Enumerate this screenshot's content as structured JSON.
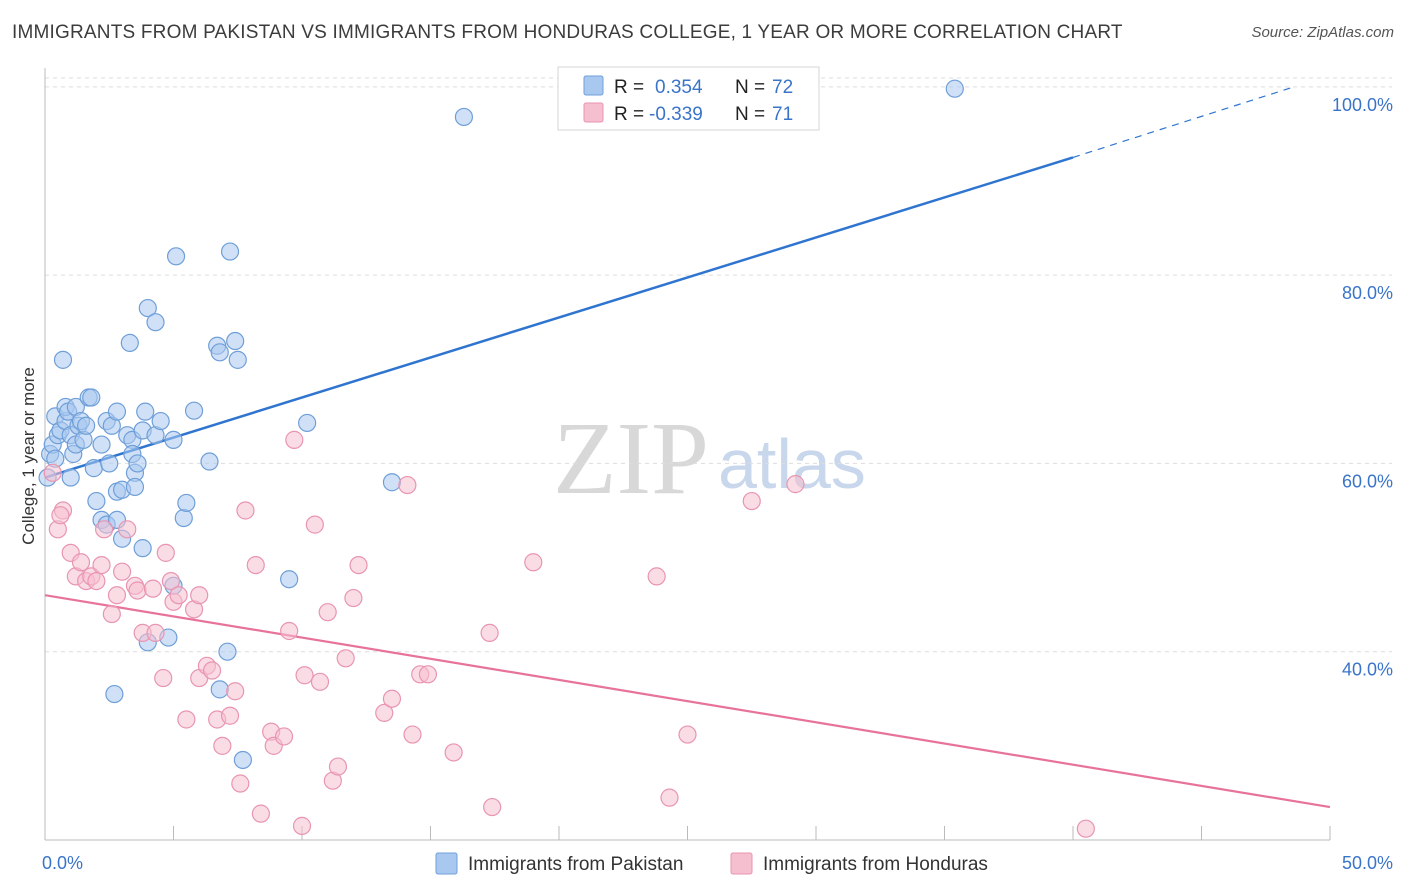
{
  "title": "IMMIGRANTS FROM PAKISTAN VS IMMIGRANTS FROM HONDURAS COLLEGE, 1 YEAR OR MORE CORRELATION CHART",
  "source": "Source: ZipAtlas.com",
  "watermark": {
    "zip": "ZIP",
    "atlas": "atlas"
  },
  "colors": {
    "blue_fill": "#a9c8f0",
    "blue_stroke": "#6f9fd8",
    "blue_line": "#2f75d0",
    "pink_fill": "#f6bfd0",
    "pink_stroke": "#e895b2",
    "pink_line": "#e8739a",
    "tick_text": "#3a74c9",
    "grid": "#dddddd"
  },
  "legend_box": {
    "rows": [
      {
        "r_label": "R =",
        "r_value": "0.354",
        "n_label": "N =",
        "n_value": "72"
      },
      {
        "r_label": "R =",
        "r_value": "-0.339",
        "n_label": "N =",
        "n_value": "71"
      }
    ]
  },
  "chart_data": {
    "type": "scatter",
    "title": "IMMIGRANTS FROM PAKISTAN VS IMMIGRANTS FROM HONDURAS COLLEGE, 1 YEAR OR MORE CORRELATION CHART",
    "xlabel": "",
    "ylabel": "College, 1 year or more",
    "xlim": [
      0,
      50
    ],
    "ylim": [
      20,
      102
    ],
    "x_tick_labels": [
      "0.0%",
      "50.0%"
    ],
    "y_ticks": [
      40,
      60,
      80,
      100
    ],
    "y_tick_labels": [
      "40.0%",
      "60.0%",
      "80.0%",
      "100.0%"
    ],
    "legend_position": "bottom",
    "series": [
      {
        "name": "Immigrants from Pakistan",
        "r": 0.354,
        "n": 72,
        "trend": {
          "x0": 0,
          "y0": 58.5,
          "x1": 40.0,
          "y1": 92.5,
          "dash_x1": 48.6,
          "dash_y1": 100.0
        },
        "points": [
          [
            0.1,
            58.5
          ],
          [
            0.2,
            61
          ],
          [
            0.3,
            62
          ],
          [
            0.4,
            65
          ],
          [
            0.4,
            60.5
          ],
          [
            0.5,
            63
          ],
          [
            0.6,
            63.5
          ],
          [
            0.7,
            71
          ],
          [
            0.8,
            64.5
          ],
          [
            0.8,
            66
          ],
          [
            0.9,
            65.5
          ],
          [
            1.0,
            63
          ],
          [
            1.1,
            61
          ],
          [
            1.2,
            62
          ],
          [
            1.2,
            66
          ],
          [
            1.3,
            64
          ],
          [
            1.4,
            64.5
          ],
          [
            1.5,
            62.5
          ],
          [
            1.6,
            64
          ],
          [
            1.7,
            67
          ],
          [
            1.8,
            67
          ],
          [
            1.9,
            59.5
          ],
          [
            2.0,
            56
          ],
          [
            2.2,
            62
          ],
          [
            2.4,
            64.5
          ],
          [
            2.5,
            60
          ],
          [
            2.6,
            64
          ],
          [
            2.8,
            57
          ],
          [
            2.8,
            65.5
          ],
          [
            3.0,
            57.2
          ],
          [
            3.0,
            52
          ],
          [
            3.2,
            63
          ],
          [
            3.3,
            72.8
          ],
          [
            3.4,
            62.5
          ],
          [
            3.4,
            61
          ],
          [
            3.5,
            59
          ],
          [
            3.5,
            57.5
          ],
          [
            3.6,
            60
          ],
          [
            3.8,
            63.5
          ],
          [
            3.9,
            65.5
          ],
          [
            2.2,
            54
          ],
          [
            2.4,
            53.5
          ],
          [
            3.8,
            51
          ],
          [
            4.0,
            76.5
          ],
          [
            4.0,
            41
          ],
          [
            4.3,
            75
          ],
          [
            4.3,
            63
          ],
          [
            4.5,
            64.5
          ],
          [
            4.8,
            41.5
          ],
          [
            5.0,
            47
          ],
          [
            5.0,
            62.5
          ],
          [
            5.1,
            82
          ],
          [
            5.4,
            54.2
          ],
          [
            5.5,
            55.8
          ],
          [
            5.8,
            65.6
          ],
          [
            6.4,
            60.2
          ],
          [
            6.7,
            72.5
          ],
          [
            6.8,
            71.8
          ],
          [
            6.8,
            36
          ],
          [
            7.1,
            40
          ],
          [
            7.2,
            82.5
          ],
          [
            7.4,
            73
          ],
          [
            7.5,
            71
          ],
          [
            7.7,
            28.5
          ],
          [
            2.7,
            35.5
          ],
          [
            9.5,
            47.7
          ],
          [
            10.2,
            64.3
          ],
          [
            13.5,
            58
          ],
          [
            16.3,
            96.8
          ],
          [
            35.4,
            99.8
          ],
          [
            2.8,
            54
          ],
          [
            1.0,
            58.5
          ]
        ]
      },
      {
        "name": "Immigrants from Honduras",
        "r": -0.339,
        "n": 71,
        "trend": {
          "x0": 0,
          "y0": 46.0,
          "x1": 50,
          "y1": 23.5
        },
        "points": [
          [
            0.3,
            59
          ],
          [
            0.5,
            53
          ],
          [
            0.7,
            55
          ],
          [
            1.0,
            50.5
          ],
          [
            1.2,
            48
          ],
          [
            1.4,
            49.5
          ],
          [
            1.6,
            47.5
          ],
          [
            1.8,
            48
          ],
          [
            2.0,
            47.5
          ],
          [
            2.2,
            49.2
          ],
          [
            2.3,
            53
          ],
          [
            2.6,
            44
          ],
          [
            2.8,
            46
          ],
          [
            3.0,
            48.5
          ],
          [
            3.2,
            53
          ],
          [
            3.5,
            47
          ],
          [
            3.6,
            46.5
          ],
          [
            3.8,
            42
          ],
          [
            4.2,
            46.7
          ],
          [
            4.3,
            42
          ],
          [
            4.6,
            37.2
          ],
          [
            4.7,
            50.5
          ],
          [
            4.9,
            47.5
          ],
          [
            5.0,
            45.3
          ],
          [
            5.2,
            46
          ],
          [
            5.5,
            32.8
          ],
          [
            5.8,
            44.5
          ],
          [
            6.0,
            46
          ],
          [
            6.0,
            37.2
          ],
          [
            6.3,
            38.5
          ],
          [
            6.5,
            38
          ],
          [
            6.7,
            32.8
          ],
          [
            6.9,
            30
          ],
          [
            7.2,
            33.2
          ],
          [
            7.4,
            35.8
          ],
          [
            7.6,
            26
          ],
          [
            7.8,
            55
          ],
          [
            8.2,
            49.2
          ],
          [
            8.4,
            22.8
          ],
          [
            8.8,
            31.5
          ],
          [
            8.9,
            30
          ],
          [
            9.3,
            31
          ],
          [
            9.5,
            42.2
          ],
          [
            9.7,
            62.5
          ],
          [
            10.0,
            21.5
          ],
          [
            10.1,
            37.5
          ],
          [
            10.5,
            53.5
          ],
          [
            10.7,
            36.8
          ],
          [
            11.0,
            44.2
          ],
          [
            11.2,
            26.3
          ],
          [
            11.4,
            27.8
          ],
          [
            11.7,
            39.3
          ],
          [
            12.0,
            45.7
          ],
          [
            12.2,
            49.2
          ],
          [
            13.2,
            33.5
          ],
          [
            13.5,
            35
          ],
          [
            14.3,
            31.2
          ],
          [
            14.6,
            37.6
          ],
          [
            14.9,
            37.6
          ],
          [
            14.1,
            57.7
          ],
          [
            15.9,
            29.3
          ],
          [
            17.3,
            42
          ],
          [
            17.4,
            23.5
          ],
          [
            19.0,
            49.5
          ],
          [
            23.8,
            48
          ],
          [
            24.3,
            24.5
          ],
          [
            25.0,
            31.2
          ],
          [
            27.5,
            56
          ],
          [
            29.2,
            57.8
          ],
          [
            40.5,
            21.2
          ],
          [
            0.6,
            54.5
          ]
        ]
      }
    ]
  }
}
